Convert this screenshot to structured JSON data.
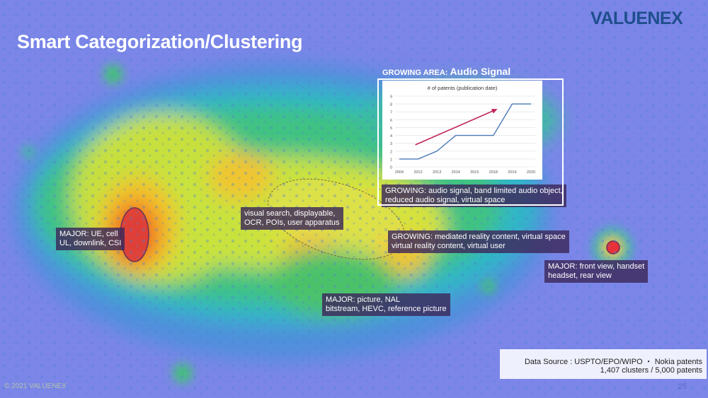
{
  "slide": {
    "title": "Smart Categorization/Clustering",
    "logo_text": "VALUENEX",
    "copyright": "© 2021 VALUENEX",
    "page_number": "25"
  },
  "labels": {
    "major_ue": "MAJOR: UE, cell\nUL, downlink, CSI",
    "visual_search": "visual search, displayable,\nOCR, POIs, user apparatus",
    "growing_audio": "GROWING: audio signal, band limited audio object,\nreduced audio signal, virtual space",
    "growing_mediated": "GROWING: mediated reality content, virtual space\nvirtual reality content, virtual user",
    "major_front": "MAJOR: front view, handset\nheadset, rear view",
    "major_picture": "MAJOR: picture, NAL\nbitstream, HEVC, reference picture"
  },
  "inset": {
    "prefix": "GROWING AREA:",
    "highlight": "Audio Signal"
  },
  "chart_data": {
    "type": "line",
    "title": "# of patents (publication date)",
    "categories": [
      "2004",
      "2012",
      "2013",
      "2014",
      "2015",
      "2018",
      "2019",
      "2020"
    ],
    "series": [
      {
        "values": [
          1,
          1,
          2,
          4,
          4,
          4,
          8,
          8
        ]
      }
    ],
    "ylim": [
      0,
      9
    ],
    "yticks": [
      "0",
      "1",
      "2",
      "3",
      "4",
      "5",
      "6",
      "7",
      "8",
      "9"
    ],
    "grid": true,
    "line_color": "#4a78b5",
    "arrow_color": "#c0275a"
  },
  "data_source": {
    "line1": "Data Source : USPTO/EPO/WIPO ・ Nokia patents",
    "line2": "1,407 clusters / 5,000 patents"
  }
}
